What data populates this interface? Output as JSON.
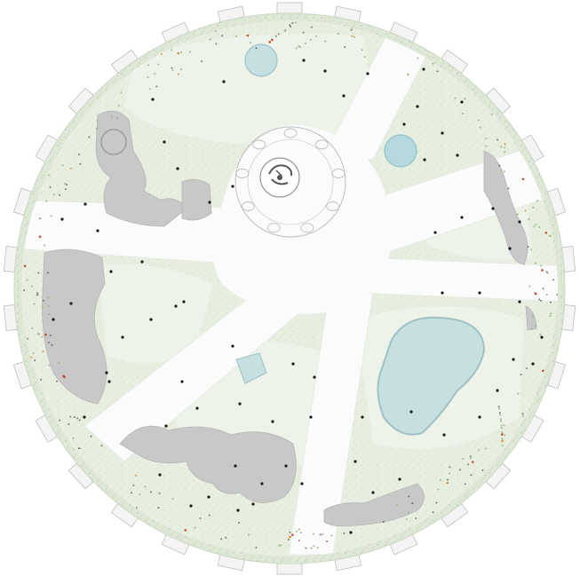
{
  "plan": {
    "colors": {
      "background": "#ffffff",
      "perimeter_band": "#dfe8d6",
      "lawn": "#e8efe1",
      "lawn_light": "#eef3e9",
      "path": "#fafbfa",
      "paving": "#c8c8c8",
      "water": "#c6dfe0",
      "water_edge": "#9fc2c4",
      "tree_dot": "#1b1b1b",
      "shrub_green": "#8fb37c",
      "flower_red": "#c23a2a",
      "flower_orange": "#d9892c",
      "segment_fill": "#f4f4f4",
      "segment_stroke": "#bdbdbd",
      "plaza_line": "#bfbfbf"
    },
    "features": {
      "perimeter_segments": 30,
      "radial_paths": 6,
      "central_plaza_rings": 2,
      "plaza_planters": 9,
      "fountain_icon": "fountain-icon",
      "ponds": [
        "pond-east",
        "fountain-pool-north",
        "fountain-pool-northeast",
        "pool-south"
      ]
    }
  }
}
